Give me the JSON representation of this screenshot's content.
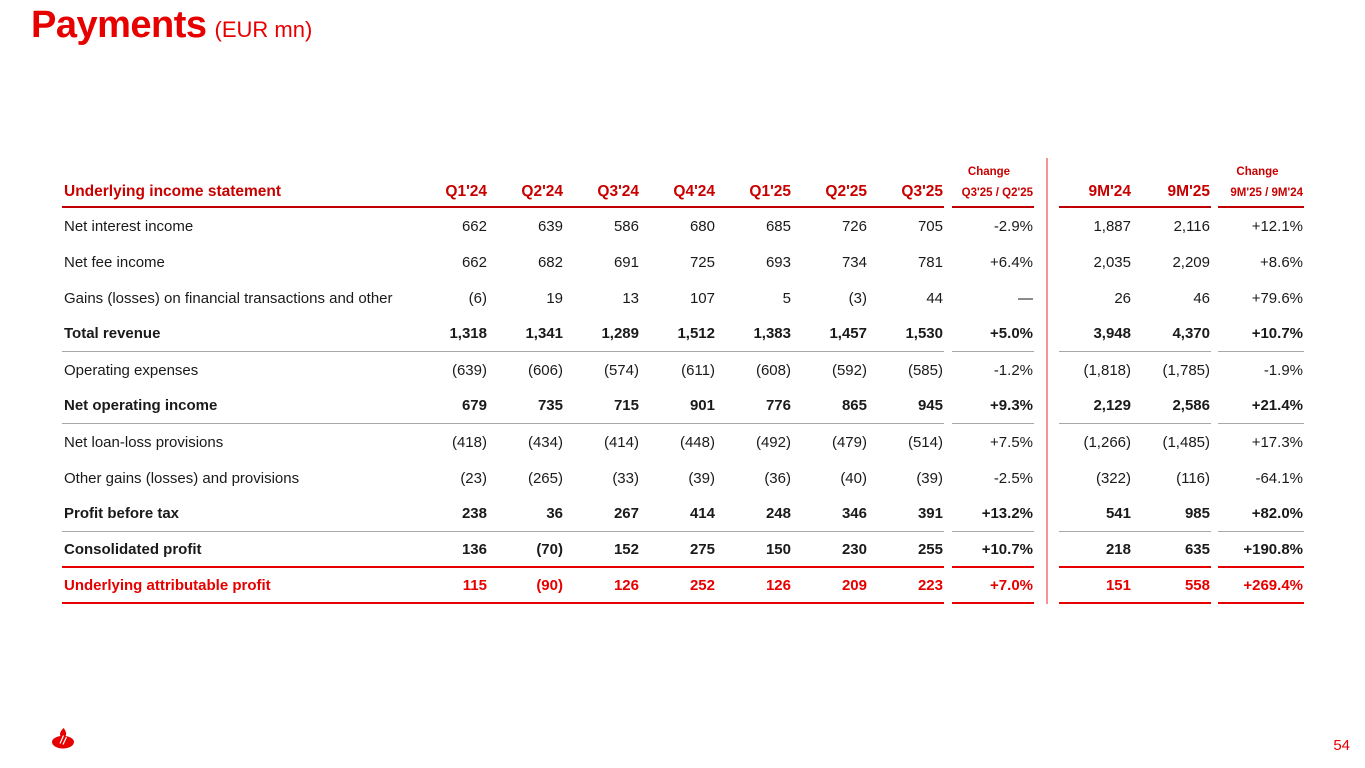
{
  "page": {
    "title": "Payments",
    "title_suffix": "(EUR mn)",
    "page_number": "54",
    "brand_color": "#e60000",
    "logo": "santander-flame-logo"
  },
  "table": {
    "header": {
      "label": "Underlying income statement",
      "quarter_columns": [
        "Q1'24",
        "Q2'24",
        "Q3'24",
        "Q4'24",
        "Q1'25",
        "Q2'25",
        "Q3'25"
      ],
      "change_q": {
        "title": "Change",
        "sub": "Q3'25 / Q2'25"
      },
      "period_columns": [
        "9M'24",
        "9M'25"
      ],
      "change_9m": {
        "title": "Change",
        "sub": "9M'25 / 9M'24"
      }
    },
    "rows": [
      {
        "label": "Net interest income",
        "values": [
          "662",
          "639",
          "586",
          "680",
          "685",
          "726",
          "705"
        ],
        "change_q": "-2.9%",
        "periods": [
          "1,887",
          "2,116"
        ],
        "change_9m": "+12.1%",
        "bold": false,
        "red": false,
        "sep": ""
      },
      {
        "label": "Net fee income",
        "values": [
          "662",
          "682",
          "691",
          "725",
          "693",
          "734",
          "781"
        ],
        "change_q": "+6.4%",
        "periods": [
          "2,035",
          "2,209"
        ],
        "change_9m": "+8.6%",
        "bold": false,
        "red": false,
        "sep": ""
      },
      {
        "label": "Gains (losses) on financial transactions and other",
        "values": [
          "(6)",
          "19",
          "13",
          "107",
          "5",
          "(3)",
          "44"
        ],
        "change_q": "—",
        "periods": [
          "26",
          "46"
        ],
        "change_9m": "+79.6%",
        "bold": false,
        "red": false,
        "sep": ""
      },
      {
        "label": "Total revenue",
        "values": [
          "1,318",
          "1,341",
          "1,289",
          "1,512",
          "1,383",
          "1,457",
          "1,530"
        ],
        "change_q": "+5.0%",
        "periods": [
          "3,948",
          "4,370"
        ],
        "change_9m": "+10.7%",
        "bold": true,
        "red": false,
        "sep": "gray"
      },
      {
        "label": "Operating expenses",
        "values": [
          "(639)",
          "(606)",
          "(574)",
          "(611)",
          "(608)",
          "(592)",
          "(585)"
        ],
        "change_q": "-1.2%",
        "periods": [
          "(1,818)",
          "(1,785)"
        ],
        "change_9m": "-1.9%",
        "bold": false,
        "red": false,
        "sep": ""
      },
      {
        "label": "Net operating income",
        "values": [
          "679",
          "735",
          "715",
          "901",
          "776",
          "865",
          "945"
        ],
        "change_q": "+9.3%",
        "periods": [
          "2,129",
          "2,586"
        ],
        "change_9m": "+21.4%",
        "bold": true,
        "red": false,
        "sep": "gray"
      },
      {
        "label": "Net loan-loss provisions",
        "values": [
          "(418)",
          "(434)",
          "(414)",
          "(448)",
          "(492)",
          "(479)",
          "(514)"
        ],
        "change_q": "+7.5%",
        "periods": [
          "(1,266)",
          "(1,485)"
        ],
        "change_9m": "+17.3%",
        "bold": false,
        "red": false,
        "sep": ""
      },
      {
        "label": "Other gains (losses) and provisions",
        "values": [
          "(23)",
          "(265)",
          "(33)",
          "(39)",
          "(36)",
          "(40)",
          "(39)"
        ],
        "change_q": "-2.5%",
        "periods": [
          "(322)",
          "(116)"
        ],
        "change_9m": "-64.1%",
        "bold": false,
        "red": false,
        "sep": ""
      },
      {
        "label": "Profit before tax",
        "values": [
          "238",
          "36",
          "267",
          "414",
          "248",
          "346",
          "391"
        ],
        "change_q": "+13.2%",
        "periods": [
          "541",
          "985"
        ],
        "change_9m": "+82.0%",
        "bold": true,
        "red": false,
        "sep": "gray"
      },
      {
        "label": "Consolidated profit",
        "values": [
          "136",
          "(70)",
          "152",
          "275",
          "150",
          "230",
          "255"
        ],
        "change_q": "+10.7%",
        "periods": [
          "218",
          "635"
        ],
        "change_9m": "+190.8%",
        "bold": true,
        "red": false,
        "sep": "red"
      },
      {
        "label": "Underlying attributable profit",
        "values": [
          "115",
          "(90)",
          "126",
          "252",
          "126",
          "209",
          "223"
        ],
        "change_q": "+7.0%",
        "periods": [
          "151",
          "558"
        ],
        "change_9m": "+269.4%",
        "bold": true,
        "red": true,
        "sep": "red"
      }
    ]
  }
}
